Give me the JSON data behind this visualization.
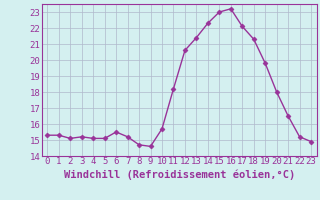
{
  "x": [
    0,
    1,
    2,
    3,
    4,
    5,
    6,
    7,
    8,
    9,
    10,
    11,
    12,
    13,
    14,
    15,
    16,
    17,
    18,
    19,
    20,
    21,
    22,
    23
  ],
  "y": [
    15.3,
    15.3,
    15.1,
    15.2,
    15.1,
    15.1,
    15.5,
    15.2,
    14.7,
    14.6,
    15.7,
    18.2,
    20.6,
    21.4,
    22.3,
    23.0,
    23.2,
    22.1,
    21.3,
    19.8,
    18.0,
    16.5,
    15.2,
    14.9
  ],
  "line_color": "#993399",
  "marker": "D",
  "marker_size": 2.5,
  "bg_color": "#d4f0f0",
  "grid_color": "#b0b8cc",
  "xlabel": "Windchill (Refroidissement éolien,°C)",
  "xlabel_color": "#993399",
  "tick_color": "#993399",
  "spine_color": "#993399",
  "ylim": [
    14,
    23.5
  ],
  "yticks": [
    14,
    15,
    16,
    17,
    18,
    19,
    20,
    21,
    22,
    23
  ],
  "xticks": [
    0,
    1,
    2,
    3,
    4,
    5,
    6,
    7,
    8,
    9,
    10,
    11,
    12,
    13,
    14,
    15,
    16,
    17,
    18,
    19,
    20,
    21,
    22,
    23
  ],
  "font_size": 6.5,
  "xlabel_font_size": 7.5,
  "linewidth": 1.0
}
